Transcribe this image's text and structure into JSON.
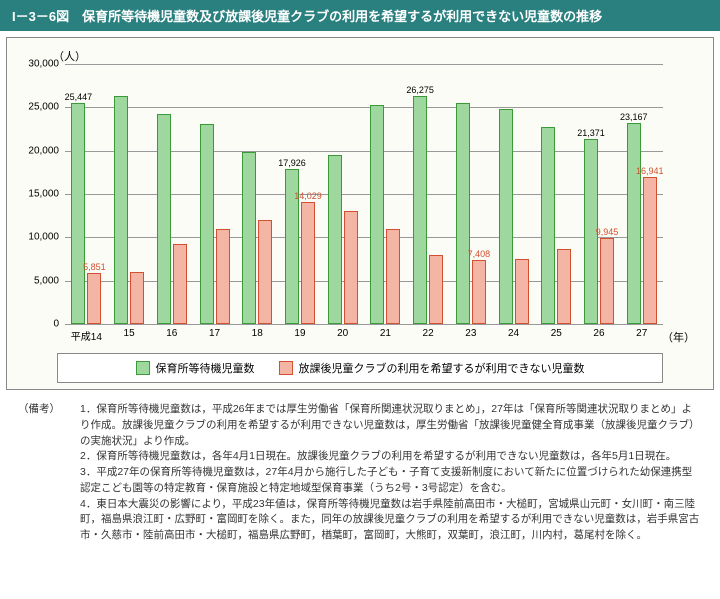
{
  "title": "I－3－6図　保育所等待機児童数及び放課後児童クラブの利用を希望するが利用できない児童数の推移",
  "y_unit": "（人）",
  "x_unit": "（年）",
  "y": {
    "min": 0,
    "max": 30000,
    "step": 5000,
    "ticks": [
      "0",
      "5,000",
      "10,000",
      "15,000",
      "20,000",
      "25,000",
      "30,000"
    ]
  },
  "categories": [
    "平成14",
    "15",
    "16",
    "17",
    "18",
    "19",
    "20",
    "21",
    "22",
    "23",
    "24",
    "25",
    "26",
    "27"
  ],
  "series": [
    {
      "name": "保育所等待機児童数",
      "color_fill": "#9fd89f",
      "color_border": "#3a9a3a",
      "values": [
        25447,
        26300,
        24200,
        23100,
        19800,
        17926,
        19500,
        25300,
        26275,
        25500,
        24800,
        22700,
        21371,
        23167
      ],
      "labels": {
        "0": "25,447",
        "5": "17,926",
        "8": "26,275",
        "12": "21,371",
        "13": "23,167"
      }
    },
    {
      "name": "放課後児童クラブの利用を希望するが利用できない児童数",
      "color_fill": "#f5b5a5",
      "color_border": "#d05030",
      "values": [
        5851,
        6000,
        9200,
        11000,
        12000,
        14029,
        13000,
        11000,
        8000,
        7408,
        7500,
        8700,
        9945,
        16941
      ],
      "labels": {
        "0": "5,851",
        "5": "14,029",
        "9": "7,408",
        "12": "9,945",
        "13": "16,941"
      }
    }
  ],
  "legend": [
    "保育所等待機児童数",
    "放課後児童クラブの利用を希望するが利用できない児童数"
  ],
  "notes_label": "（備考）",
  "notes": [
    "1．保育所等待機児童数は，平成26年までは厚生労働省「保育所関連状況取りまとめ」，27年は「保育所等関連状況取りまとめ」より作成。放課後児童クラブの利用を希望するが利用できない児童数は，厚生労働省「放課後児童健全育成事業（放課後児童クラブ）の実施状況」より作成。",
    "2．保育所等待機児童数は，各年4月1日現在。放課後児童クラブの利用を希望するが利用できない児童数は，各年5月1日現在。",
    "3．平成27年の保育所等待機児童数は，27年4月から施行した子ども・子育て支援新制度において新たに位置づけられた幼保連携型認定こども園等の特定教育・保育施設と特定地域型保育事業（うち2号・3号認定）を含む。",
    "4．東日本大震災の影響により，平成23年値は，保育所等待機児童数は岩手県陸前高田市・大槌町，宮城県山元町・女川町・南三陸町，福島県浪江町・広野町・富岡町を除く。また，同年の放課後児童クラブの利用を希望するが利用できない児童数は，岩手県宮古市・久慈市・陸前高田市・大槌町，福島県広野町，楢葉町，富岡町，大熊町，双葉町，浪江町，川内村，葛尾村を除く。"
  ]
}
